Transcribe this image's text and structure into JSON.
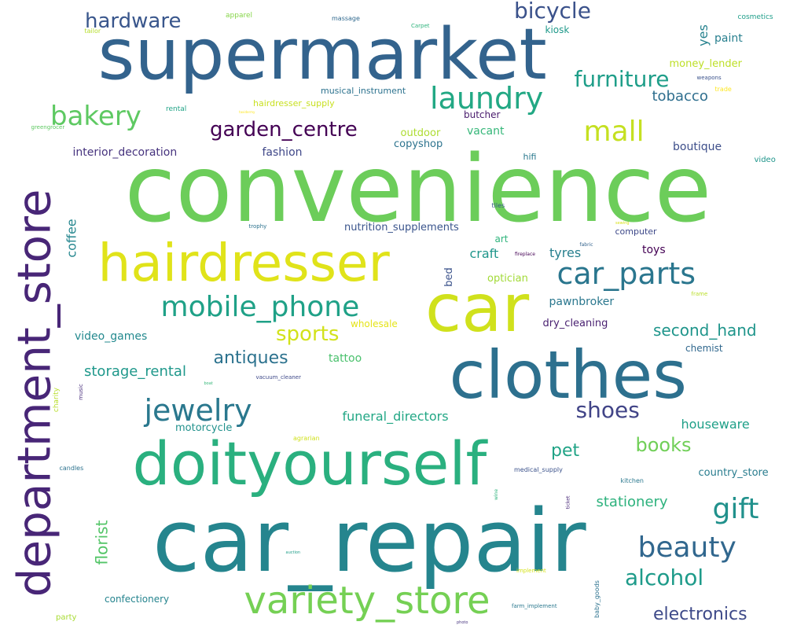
{
  "words": [
    {
      "id": "convenience",
      "text": "convenience",
      "color": "#6ccd5a"
    },
    {
      "id": "supermarket",
      "text": "supermarket",
      "color": "#33638d"
    },
    {
      "id": "car_repair",
      "text": "car_repair",
      "color": "#25858e"
    },
    {
      "id": "car",
      "text": "car",
      "color": "#d0e11c"
    },
    {
      "id": "clothes",
      "text": "clothes",
      "color": "#2d708e"
    },
    {
      "id": "hairdresser",
      "text": "hairdresser",
      "color": "#e0e31a"
    },
    {
      "id": "doityourself",
      "text": "doityourself",
      "color": "#2ab07f"
    },
    {
      "id": "department_store",
      "text": "department_store",
      "color": "#482677"
    },
    {
      "id": "variety_store",
      "text": "variety_store",
      "color": "#75d054"
    },
    {
      "id": "mobile_phone",
      "text": "mobile_phone",
      "color": "#1fa187"
    },
    {
      "id": "car_parts",
      "text": "car_parts",
      "color": "#2a768e"
    },
    {
      "id": "jewelry",
      "text": "jewelry",
      "color": "#2a788e"
    },
    {
      "id": "laundry",
      "text": "laundry",
      "color": "#22a884"
    },
    {
      "id": "beauty",
      "text": "beauty",
      "color": "#31678e"
    },
    {
      "id": "bakery",
      "text": "bakery",
      "color": "#5ec962"
    },
    {
      "id": "mall",
      "text": "mall",
      "color": "#c5e021"
    },
    {
      "id": "bicycle",
      "text": "bicycle",
      "color": "#3b528b"
    },
    {
      "id": "furniture",
      "text": "furniture",
      "color": "#1f9e89"
    },
    {
      "id": "hardware",
      "text": "hardware",
      "color": "#39568c"
    },
    {
      "id": "garden_centre",
      "text": "garden_centre",
      "color": "#440154"
    },
    {
      "id": "gift",
      "text": "gift",
      "color": "#21918c"
    },
    {
      "id": "shoes",
      "text": "shoes",
      "color": "#414487"
    },
    {
      "id": "alcohol",
      "text": "alcohol",
      "color": "#1e9b8a"
    },
    {
      "id": "sports",
      "text": "sports",
      "color": "#d2e21b"
    },
    {
      "id": "antiques",
      "text": "antiques",
      "color": "#2c728e"
    },
    {
      "id": "books",
      "text": "books",
      "color": "#70cf57"
    },
    {
      "id": "electronics",
      "text": "electronics",
      "color": "#3e4a89"
    },
    {
      "id": "tobacco",
      "text": "tobacco",
      "color": "#2e6e8e"
    },
    {
      "id": "second_hand",
      "text": "second_hand",
      "color": "#1f958b"
    },
    {
      "id": "pet",
      "text": "pet",
      "color": "#20a386"
    },
    {
      "id": "florist",
      "text": "florist",
      "color": "#54c568"
    },
    {
      "id": "stationery",
      "text": "stationery",
      "color": "#2db27d"
    },
    {
      "id": "storage_rental",
      "text": "storage_rental",
      "color": "#1f988b"
    },
    {
      "id": "houseware",
      "text": "houseware",
      "color": "#1fa088"
    },
    {
      "id": "funeral_directors",
      "text": "funeral_directors",
      "color": "#22a785"
    },
    {
      "id": "video_games",
      "text": "video_games",
      "color": "#23898e"
    },
    {
      "id": "interior_decoration",
      "text": "interior_decoration",
      "color": "#46337e"
    },
    {
      "id": "fashion",
      "text": "fashion",
      "color": "#3f4788"
    },
    {
      "id": "yes",
      "text": "yes",
      "color": "#26828e"
    },
    {
      "id": "tyres",
      "text": "tyres",
      "color": "#277f8e"
    },
    {
      "id": "craft",
      "text": "craft",
      "color": "#1f968b"
    },
    {
      "id": "pawnbroker",
      "text": "pawnbroker",
      "color": "#2a778e"
    },
    {
      "id": "dry_cleaning",
      "text": "dry_cleaning",
      "color": "#481f70"
    },
    {
      "id": "toys",
      "text": "toys",
      "color": "#440154"
    },
    {
      "id": "country_store",
      "text": "country_store",
      "color": "#287c8e"
    },
    {
      "id": "confectionery",
      "text": "confectionery",
      "color": "#25848e"
    },
    {
      "id": "boutique",
      "text": "boutique",
      "color": "#3d4e8a"
    },
    {
      "id": "coffee",
      "text": "coffee",
      "color": "#24868e"
    },
    {
      "id": "nutrition_supplements",
      "text": "nutrition_supplements",
      "color": "#3a548c"
    },
    {
      "id": "tattoo",
      "text": "tattoo",
      "color": "#4ac16d"
    },
    {
      "id": "motorcycle",
      "text": "motorcycle",
      "color": "#21918c"
    },
    {
      "id": "copyshop",
      "text": "copyshop",
      "color": "#2c738e"
    },
    {
      "id": "vacant",
      "text": "vacant",
      "color": "#35b779"
    },
    {
      "id": "outdoor",
      "text": "outdoor",
      "color": "#addc30"
    },
    {
      "id": "optician",
      "text": "optician",
      "color": "#a2da37"
    },
    {
      "id": "chemist",
      "text": "chemist",
      "color": "#31688e"
    },
    {
      "id": "paint",
      "text": "paint",
      "color": "#277f8e"
    },
    {
      "id": "money_lender",
      "text": "money_lender",
      "color": "#bddf26"
    },
    {
      "id": "musical_instrument",
      "text": "musical_instrument",
      "color": "#2c728e"
    },
    {
      "id": "hairdresser_supply",
      "text": "hairdresser_supply",
      "color": "#c8e020"
    },
    {
      "id": "butcher",
      "text": "butcher",
      "color": "#481a6c"
    },
    {
      "id": "kiosk",
      "text": "kiosk",
      "color": "#1f998a"
    },
    {
      "id": "art",
      "text": "art",
      "color": "#2fb47c"
    },
    {
      "id": "bed",
      "text": "bed",
      "color": "#3b528b"
    },
    {
      "id": "wholesale",
      "text": "wholesale",
      "color": "#e5e419"
    },
    {
      "id": "hifi",
      "text": "hifi",
      "color": "#2a788e"
    },
    {
      "id": "computer",
      "text": "computer",
      "color": "#3e4989"
    },
    {
      "id": "rental",
      "text": "rental",
      "color": "#20a386"
    },
    {
      "id": "greengrocer",
      "text": "greengrocer",
      "color": "#5ec962"
    },
    {
      "id": "tailor",
      "text": "tailor",
      "color": "#b5de2b"
    },
    {
      "id": "apparel",
      "text": "apparel",
      "color": "#86d549"
    },
    {
      "id": "massage",
      "text": "massage",
      "color": "#30698e"
    },
    {
      "id": "Carpet",
      "text": "Carpet",
      "color": "#2eb37c"
    },
    {
      "id": "cosmetics",
      "text": "cosmetics",
      "color": "#1f9e89"
    },
    {
      "id": "weapons",
      "text": "weapons",
      "color": "#3b528b"
    },
    {
      "id": "trade",
      "text": "trade",
      "color": "#fde725"
    },
    {
      "id": "video",
      "text": "video",
      "color": "#1f958b"
    },
    {
      "id": "tiles",
      "text": "tiles",
      "color": "#38598c"
    },
    {
      "id": "trophy",
      "text": "trophy",
      "color": "#2c728e"
    },
    {
      "id": "sewing",
      "text": "sewing",
      "color": "#d8e219"
    },
    {
      "id": "fabric",
      "text": "fabric",
      "color": "#33638d"
    },
    {
      "id": "fireplace",
      "text": "fireplace",
      "color": "#440154"
    },
    {
      "id": "frame",
      "text": "frame",
      "color": "#bade28"
    },
    {
      "id": "charity",
      "text": "charity",
      "color": "#b8de29"
    },
    {
      "id": "music",
      "text": "music",
      "color": "#472d7b"
    },
    {
      "id": "boat",
      "text": "boat",
      "color": "#35b779"
    },
    {
      "id": "vacuum_cleaner",
      "text": "vacuum_cleaner",
      "color": "#3e4989"
    },
    {
      "id": "agrarian",
      "text": "agrarian",
      "color": "#d0e11c"
    },
    {
      "id": "candles",
      "text": "candles",
      "color": "#2c728e"
    },
    {
      "id": "medical_supply",
      "text": "medical_supply",
      "color": "#3b528b"
    },
    {
      "id": "kitchen",
      "text": "kitchen",
      "color": "#2a788e"
    },
    {
      "id": "wine",
      "text": "wine",
      "color": "#2eb37c"
    },
    {
      "id": "ticket",
      "text": "ticket",
      "color": "#482878"
    },
    {
      "id": "baby_goods",
      "text": "baby_goods",
      "color": "#2c728e"
    },
    {
      "id": "auction",
      "text": "auction",
      "color": "#1f9e89"
    },
    {
      "id": "implement",
      "text": "implement",
      "color": "#d5e21a"
    },
    {
      "id": "farm_implement",
      "text": "farm_implement",
      "color": "#2a788e"
    },
    {
      "id": "party",
      "text": "party",
      "color": "#a8db34"
    },
    {
      "id": "photo",
      "text": "photo",
      "color": "#46337e"
    },
    {
      "id": "taxidermy",
      "text": "taxidermy",
      "color": "#fde725"
    }
  ]
}
